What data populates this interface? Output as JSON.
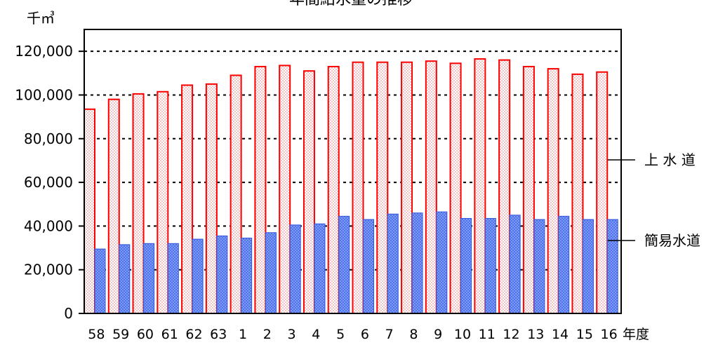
{
  "chart_data": {
    "type": "bar",
    "title": "年間給水量の推移",
    "unit": "千㎥",
    "x_suffix": "年度",
    "categories": [
      "58",
      "59",
      "60",
      "61",
      "62",
      "63",
      "1",
      "2",
      "3",
      "4",
      "5",
      "6",
      "7",
      "8",
      "9",
      "10",
      "11",
      "12",
      "13",
      "14",
      "15",
      "16"
    ],
    "series": [
      {
        "name": "上 水 道",
        "color": "#ff0000",
        "fill": "#f4d8d8",
        "values": [
          93500,
          98000,
          100500,
          101500,
          104500,
          105000,
          109000,
          113000,
          113500,
          111000,
          113000,
          115000,
          115000,
          115000,
          115500,
          114500,
          116500,
          116000,
          113000,
          112000,
          109500,
          110500
        ]
      },
      {
        "name": "簡易水道",
        "color": "#3355dd",
        "fill": "#6f8ff0",
        "values": [
          29500,
          31500,
          32000,
          32000,
          34000,
          35500,
          34500,
          37000,
          40500,
          41000,
          44500,
          43000,
          45500,
          46000,
          46500,
          43500,
          43500,
          45000,
          43000,
          44500,
          43000,
          43000
        ]
      }
    ],
    "ylim": [
      0,
      130000
    ],
    "yticks": [
      0,
      20000,
      40000,
      60000,
      80000,
      100000,
      120000
    ],
    "ytick_labels": [
      "0",
      "20,000",
      "40,000",
      "60,000",
      "80,000",
      "100,000",
      "120,000"
    ],
    "grid": "dotted-horizontal"
  }
}
